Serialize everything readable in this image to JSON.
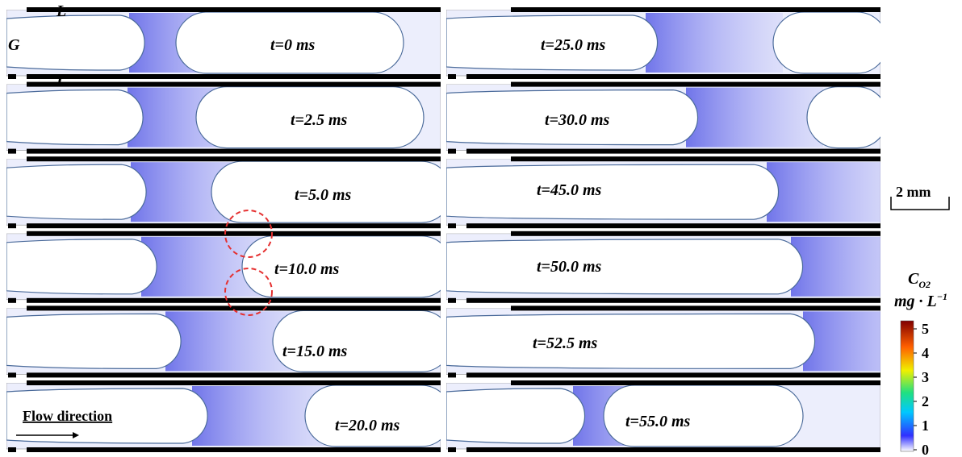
{
  "labels": {
    "liquid_top": "L",
    "gas": "G",
    "liquid_bottom": "L",
    "flow": "Flow direction",
    "scale": "2 mm"
  },
  "panels": [
    {
      "time": "t=0 ms"
    },
    {
      "time": "t=2.5 ms"
    },
    {
      "time": "t=5.0 ms"
    },
    {
      "time": "t=10.0 ms"
    },
    {
      "time": "t=15.0 ms"
    },
    {
      "time": "t=20.0 ms"
    },
    {
      "time": "t=25.0 ms"
    },
    {
      "time": "t=30.0 ms"
    },
    {
      "time": "t=45.0 ms"
    },
    {
      "time": "t=50.0 ms"
    },
    {
      "time": "t=52.5 ms"
    },
    {
      "time": "t=55.0 ms"
    }
  ],
  "colorbar": {
    "title": "C",
    "subscript": "O2",
    "unit": "mg · L",
    "unit_exp": "−1",
    "ticks": [
      "0",
      "1",
      "2",
      "3",
      "4",
      "5"
    ]
  }
}
